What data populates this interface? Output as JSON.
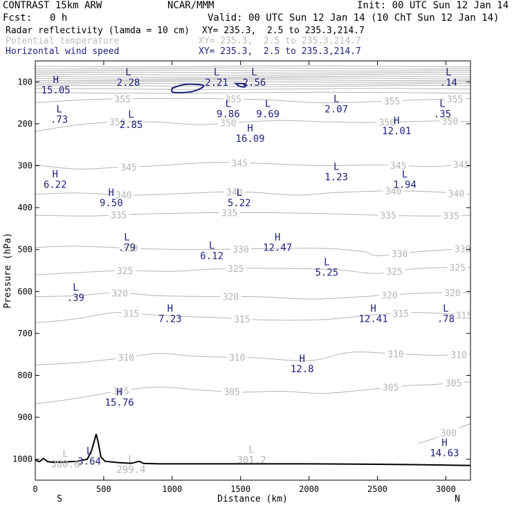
{
  "header": {
    "model": "CONTRAST 15km ARW",
    "institution": "NCAR/MMM",
    "init": "Init: 00 UTC Sun 12 Jan 14",
    "fcst_label": "Fcst:",
    "fcst_value": "0 h",
    "valid": "Valid: 00 UTC Sun 12 Jan 14 (10 ChT Sun 12 Jan 14)",
    "fields": [
      {
        "name": "Radar reflectivity (lamda = 10 cm)",
        "xy": "XY= 235.3,  2.5 to 235.3,214.7",
        "color": "#000000"
      },
      {
        "name": "Potential temperature",
        "xy": "XY= 235.3,  2.5 to 235.3,214.7",
        "color": "#bdbdbd"
      },
      {
        "name": "Horizontal wind speed",
        "xy": "XY= 235.3,  2.5 to 235.3,214.7",
        "color": "#1b1f7a"
      }
    ]
  },
  "colors": {
    "theta": "#b4b4b4",
    "wind": "#1b1f7a",
    "terrain": "#000000",
    "radar": "#1b1f7a"
  },
  "chart_data": {
    "type": "cross-section",
    "xlabel": "Distance (km)",
    "ylabel": "Pressure (hPa)",
    "xlim": [
      0,
      3180
    ],
    "ylim": [
      1050,
      50
    ],
    "x_ticks": [
      0,
      500,
      1000,
      1500,
      2000,
      2500,
      3000
    ],
    "y_ticks": [
      100,
      200,
      300,
      400,
      500,
      600,
      700,
      800,
      900,
      1000
    ],
    "x_end_labels": {
      "left": "S",
      "right": "N"
    },
    "theta_contours": [
      {
        "value": 300,
        "label": "300",
        "points": [
          [
            2800,
            962
          ],
          [
            2900,
            952
          ],
          [
            3000,
            940
          ],
          [
            3100,
            925
          ],
          [
            3180,
            915
          ]
        ]
      },
      {
        "value": 305,
        "label": "305",
        "points": [
          [
            0,
            868
          ],
          [
            300,
            855
          ],
          [
            600,
            838
          ],
          [
            900,
            828
          ],
          [
            1200,
            835
          ],
          [
            1500,
            840
          ],
          [
            1800,
            838
          ],
          [
            2100,
            843
          ],
          [
            2400,
            835
          ],
          [
            2700,
            825
          ],
          [
            2900,
            822
          ],
          [
            3180,
            815
          ]
        ]
      },
      {
        "value": 310,
        "label": "310",
        "points": [
          [
            0,
            775
          ],
          [
            300,
            770
          ],
          [
            600,
            760
          ],
          [
            900,
            748
          ],
          [
            1200,
            755
          ],
          [
            1600,
            758
          ],
          [
            2000,
            765
          ],
          [
            2300,
            745
          ],
          [
            2600,
            748
          ],
          [
            2900,
            752
          ],
          [
            3180,
            750
          ]
        ]
      },
      {
        "value": 315,
        "label": "315",
        "points": [
          [
            0,
            675
          ],
          [
            300,
            665
          ],
          [
            600,
            650
          ],
          [
            900,
            657
          ],
          [
            1300,
            662
          ],
          [
            1700,
            668
          ],
          [
            2100,
            667
          ],
          [
            2500,
            655
          ],
          [
            2800,
            650
          ],
          [
            3180,
            657
          ]
        ]
      },
      {
        "value": 320,
        "label": "320",
        "points": [
          [
            0,
            612
          ],
          [
            300,
            610
          ],
          [
            600,
            603
          ],
          [
            900,
            610
          ],
          [
            1300,
            612
          ],
          [
            1600,
            612
          ],
          [
            2000,
            618
          ],
          [
            2300,
            614
          ],
          [
            2600,
            608
          ],
          [
            2900,
            603
          ],
          [
            3180,
            603
          ]
        ]
      },
      {
        "value": 325,
        "label": "325",
        "points": [
          [
            0,
            560
          ],
          [
            300,
            555
          ],
          [
            650,
            550
          ],
          [
            1000,
            552
          ],
          [
            1400,
            545
          ],
          [
            1800,
            545
          ],
          [
            2200,
            548
          ],
          [
            2500,
            557
          ],
          [
            2800,
            545
          ],
          [
            3180,
            542
          ]
        ]
      },
      {
        "value": 330,
        "label": "330",
        "points": [
          [
            0,
            495
          ],
          [
            300,
            492
          ],
          [
            800,
            498
          ],
          [
            1200,
            500
          ],
          [
            1600,
            498
          ],
          [
            2100,
            497
          ],
          [
            2400,
            505
          ],
          [
            2500,
            515
          ],
          [
            2800,
            505
          ],
          [
            3180,
            497
          ]
        ]
      },
      {
        "value": 335,
        "label": "335",
        "points": [
          [
            0,
            418
          ],
          [
            400,
            420
          ],
          [
            800,
            415
          ],
          [
            1300,
            412
          ],
          [
            1700,
            412
          ],
          [
            2100,
            414
          ],
          [
            2500,
            418
          ],
          [
            2900,
            420
          ],
          [
            3180,
            418
          ]
        ]
      },
      {
        "value": 340,
        "label": "340",
        "points": [
          [
            0,
            368
          ],
          [
            300,
            365
          ],
          [
            700,
            370
          ],
          [
            1100,
            366
          ],
          [
            1500,
            362
          ],
          [
            1900,
            370
          ],
          [
            2200,
            364
          ],
          [
            2600,
            360
          ],
          [
            2900,
            362
          ],
          [
            3180,
            368
          ]
        ]
      },
      {
        "value": 345,
        "label": "345",
        "points": [
          [
            0,
            298
          ],
          [
            300,
            308
          ],
          [
            600,
            304
          ],
          [
            900,
            300
          ],
          [
            1300,
            292
          ],
          [
            1700,
            295
          ],
          [
            2100,
            300
          ],
          [
            2500,
            298
          ],
          [
            2900,
            302
          ],
          [
            3180,
            295
          ]
        ]
      },
      {
        "value": 350,
        "label": "350",
        "points": [
          [
            0,
            218
          ],
          [
            300,
            203
          ],
          [
            600,
            195
          ],
          [
            900,
            196
          ],
          [
            1200,
            202
          ],
          [
            1500,
            196
          ],
          [
            1800,
            192
          ],
          [
            2100,
            195
          ],
          [
            2400,
            197
          ],
          [
            2700,
            195
          ],
          [
            3000,
            193
          ],
          [
            3180,
            195
          ]
        ]
      },
      {
        "value": 355,
        "label": "355",
        "points": [
          [
            0,
            150
          ],
          [
            400,
            142
          ],
          [
            800,
            140
          ],
          [
            1300,
            140
          ],
          [
            1700,
            143
          ],
          [
            2100,
            150
          ],
          [
            2500,
            147
          ],
          [
            2800,
            143
          ],
          [
            3180,
            140
          ]
        ]
      }
    ],
    "upper_grey_lines_hpa": [
      63,
      68,
      73,
      78,
      83,
      88,
      92,
      96,
      100,
      105,
      110,
      117,
      126
    ],
    "radar_contours": [
      {
        "points": [
          [
            1000,
            115
          ],
          [
            1100,
            106
          ],
          [
            1230,
            109
          ],
          [
            1150,
            123
          ],
          [
            1010,
            125
          ]
        ]
      },
      {
        "points": [
          [
            1465,
            104
          ],
          [
            1535,
            105
          ],
          [
            1530,
            112
          ],
          [
            1490,
            110
          ]
        ]
      }
    ],
    "terrain_surface_hpa": [
      [
        0,
        1002
      ],
      [
        30,
        1006
      ],
      [
        60,
        998
      ],
      [
        90,
        1006
      ],
      [
        120,
        1007
      ],
      [
        200,
        1007
      ],
      [
        300,
        1005
      ],
      [
        380,
        1000
      ],
      [
        410,
        980
      ],
      [
        430,
        958
      ],
      [
        445,
        940
      ],
      [
        460,
        960
      ],
      [
        480,
        995
      ],
      [
        510,
        1005
      ],
      [
        600,
        1008
      ],
      [
        700,
        1010
      ],
      [
        760,
        1005
      ],
      [
        790,
        1010
      ],
      [
        900,
        1011
      ],
      [
        1200,
        1011
      ],
      [
        1500,
        1011
      ],
      [
        2000,
        1011
      ],
      [
        2500,
        1012
      ],
      [
        2800,
        1013
      ],
      [
        3000,
        1014
      ],
      [
        3180,
        1015
      ]
    ],
    "wind_extrema": [
      {
        "type": "H",
        "value": "15.05",
        "x": 150,
        "p": 103
      },
      {
        "type": "L",
        "value": "2.28",
        "x": 680,
        "p": 85
      },
      {
        "type": "L",
        "value": "2.21",
        "x": 1325,
        "p": 85
      },
      {
        "type": "L",
        "value": "2.56",
        "x": 1600,
        "p": 85
      },
      {
        "type": "L",
        "value": ".14",
        "x": 3020,
        "p": 85
      },
      {
        "type": "L",
        "value": ".73",
        "x": 175,
        "p": 173
      },
      {
        "type": "L",
        "value": "2.85",
        "x": 700,
        "p": 185
      },
      {
        "type": "L",
        "value": "9.86",
        "x": 1410,
        "p": 160
      },
      {
        "type": "L",
        "value": "9.69",
        "x": 1700,
        "p": 160
      },
      {
        "type": "L",
        "value": "2.07",
        "x": 2200,
        "p": 148
      },
      {
        "type": "L",
        "value": ".35",
        "x": 2975,
        "p": 160
      },
      {
        "type": "H",
        "value": "16.09",
        "x": 1570,
        "p": 218
      },
      {
        "type": "H",
        "value": "12.01",
        "x": 2640,
        "p": 200
      },
      {
        "type": "L",
        "value": "1.23",
        "x": 2200,
        "p": 310
      },
      {
        "type": "H",
        "value": "6.22",
        "x": 145,
        "p": 328
      },
      {
        "type": "H",
        "value": "9.50",
        "x": 555,
        "p": 372
      },
      {
        "type": "L",
        "value": "5.22",
        "x": 1490,
        "p": 372
      },
      {
        "type": "L",
        "value": "1.94",
        "x": 2700,
        "p": 328
      },
      {
        "type": "L",
        "value": ".79",
        "x": 670,
        "p": 478
      },
      {
        "type": "H",
        "value": "12.47",
        "x": 1770,
        "p": 478
      },
      {
        "type": "L",
        "value": "6.12",
        "x": 1290,
        "p": 498
      },
      {
        "type": "L",
        "value": "5.25",
        "x": 2130,
        "p": 538
      },
      {
        "type": "L",
        "value": ".39",
        "x": 295,
        "p": 598
      },
      {
        "type": "H",
        "value": "7.23",
        "x": 985,
        "p": 648
      },
      {
        "type": "H",
        "value": "12.41",
        "x": 2470,
        "p": 648
      },
      {
        "type": "L",
        "value": ".78",
        "x": 3000,
        "p": 648
      },
      {
        "type": "H",
        "value": "12.8",
        "x": 1950,
        "p": 768
      },
      {
        "type": "H",
        "value": "15.76",
        "x": 615,
        "p": 848
      },
      {
        "type": "H",
        "value": "14.63",
        "x": 2990,
        "p": 968
      },
      {
        "type": "L",
        "value": "3.64",
        "x": 395,
        "p": 988
      }
    ],
    "theta_extrema": [
      {
        "type": "L",
        "value": "300.6",
        "x": 220,
        "p": 995
      },
      {
        "type": "L",
        "value": "299.4",
        "x": 700,
        "p": 1008
      },
      {
        "type": "L",
        "value": "301.2",
        "x": 1580,
        "p": 985
      }
    ]
  }
}
